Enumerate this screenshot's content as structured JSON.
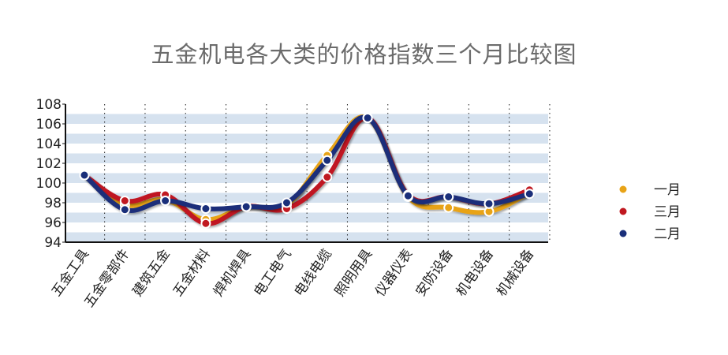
{
  "chart_data": {
    "type": "line",
    "title": "五金机电各大类的价格指数三个月比较图",
    "categories": [
      "五金工具",
      "五金零部件",
      "建筑五金",
      "五金材料",
      "焊机焊具",
      "电工电气",
      "电线电缆",
      "照明用具",
      "仪器仪表",
      "安防设备",
      "机电设备",
      "机械设备"
    ],
    "ylim": [
      94,
      108
    ],
    "yticks": [
      "94",
      "96",
      "98",
      "100",
      "102",
      "104",
      "106",
      "108"
    ],
    "grid": true,
    "legend_position": "right",
    "series": [
      {
        "name": "一月",
        "color": "#e8a317",
        "values": [
          100.8,
          97.8,
          98.3,
          96.3,
          97.6,
          97.8,
          102.8,
          106.6,
          98.6,
          97.5,
          97.1,
          99.0
        ]
      },
      {
        "name": "三月",
        "color": "#c01820",
        "values": [
          100.8,
          98.2,
          98.8,
          95.9,
          97.6,
          97.4,
          100.6,
          106.6,
          98.8,
          98.6,
          97.9,
          99.3
        ]
      },
      {
        "name": "二月",
        "color": "#1a2f7a",
        "values": [
          100.8,
          97.3,
          98.2,
          97.4,
          97.6,
          98.0,
          102.3,
          106.6,
          98.7,
          98.6,
          97.9,
          98.9
        ]
      }
    ]
  }
}
